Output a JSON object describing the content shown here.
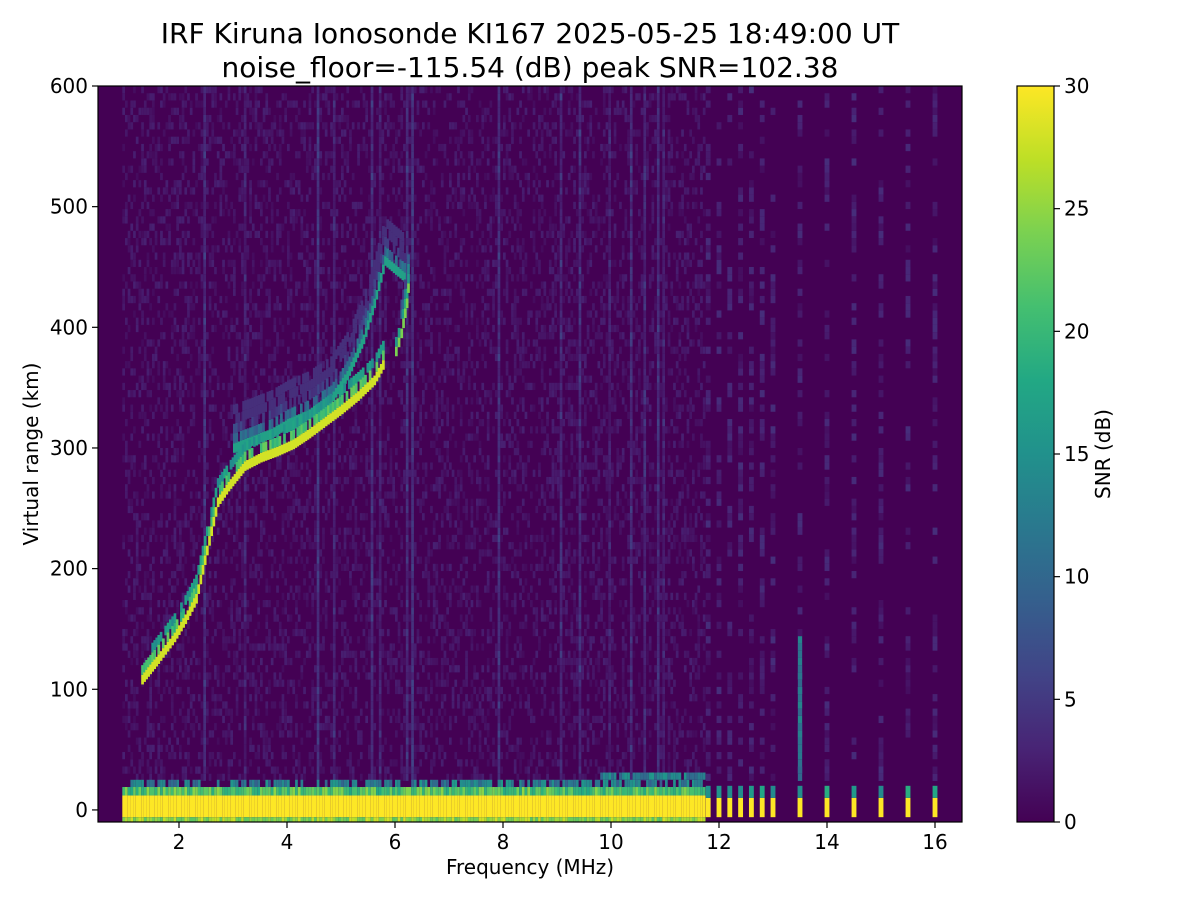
{
  "chart_data": {
    "type": "heatmap",
    "title": "IRF Kiruna Ionosonde KI167 2025-05-25 18:49:00  UT",
    "subtitle": "noise_floor=-115.54 (dB) peak SNR=102.38",
    "xlabel": "Frequency (MHz)",
    "ylabel": "Virtual range (km)",
    "xlim": [
      0.5,
      16.5
    ],
    "ylim": [
      -10,
      600
    ],
    "xticks": [
      2,
      4,
      6,
      8,
      10,
      12,
      14,
      16
    ],
    "yticks": [
      0,
      100,
      200,
      300,
      400,
      500,
      600
    ],
    "colorbar": {
      "label": "SNR (dB)",
      "range": [
        0,
        30
      ],
      "ticks": [
        0,
        5,
        10,
        15,
        20,
        25,
        30
      ],
      "colormap": "viridis"
    },
    "data_start_frequency": 0.95,
    "continuous_sweep_end": 11.75,
    "sparse_channels": [
      11.8,
      12.0,
      12.2,
      12.4,
      12.6,
      12.8,
      13.0,
      13.5,
      14.0,
      14.5,
      15.0,
      15.5,
      16.0
    ],
    "trace_o_mode": [
      [
        1.3,
        108
      ],
      [
        1.6,
        125
      ],
      [
        1.9,
        143
      ],
      [
        2.1,
        158
      ],
      [
        2.3,
        175
      ],
      [
        2.5,
        215
      ],
      [
        2.7,
        255
      ],
      [
        2.9,
        268
      ],
      [
        3.2,
        285
      ],
      [
        3.5,
        292
      ],
      [
        3.8,
        297
      ],
      [
        4.1,
        303
      ],
      [
        4.4,
        312
      ],
      [
        4.7,
        322
      ],
      [
        5.0,
        332
      ],
      [
        5.3,
        343
      ],
      [
        5.6,
        356
      ],
      [
        5.8,
        372
      ]
    ],
    "trace_x_mode": [
      [
        3.0,
        300
      ],
      [
        3.3,
        305
      ],
      [
        3.7,
        312
      ],
      [
        4.0,
        320
      ],
      [
        4.4,
        328
      ],
      [
        4.8,
        340
      ],
      [
        5.1,
        360
      ],
      [
        5.4,
        390
      ],
      [
        5.6,
        420
      ],
      [
        5.8,
        455
      ],
      [
        6.2,
        440
      ]
    ],
    "critical_frequency_cusp": [
      [
        6.0,
        380
      ],
      [
        6.1,
        395
      ],
      [
        6.2,
        420
      ],
      [
        6.25,
        445
      ]
    ]
  }
}
